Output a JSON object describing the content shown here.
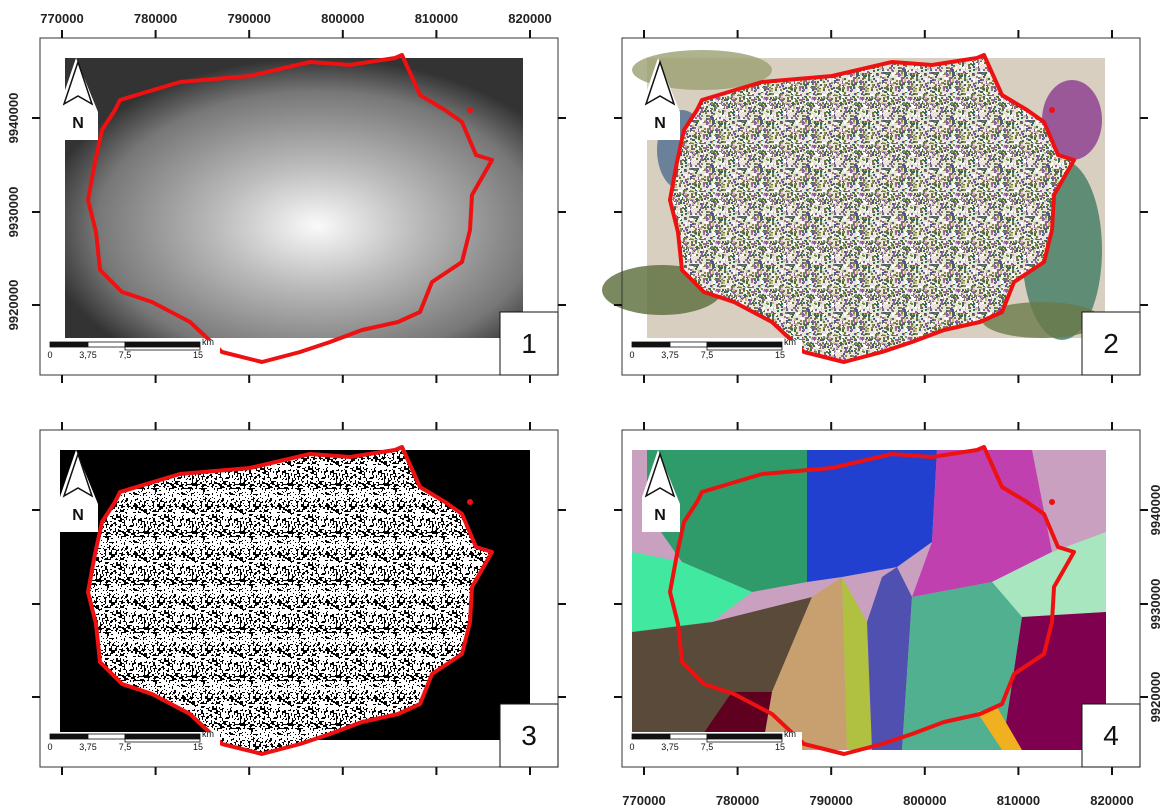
{
  "panels": [
    {
      "label": "1",
      "north": "N",
      "scale_bar": [
        "0",
        "3,75",
        "7,5",
        "15",
        "km"
      ]
    },
    {
      "label": "2",
      "north": "N",
      "scale_bar": [
        "0",
        "3,75",
        "7,5",
        "15",
        "km"
      ]
    },
    {
      "label": "3",
      "north": "N",
      "scale_bar": [
        "0",
        "3,75",
        "7,5",
        "15",
        "km"
      ]
    },
    {
      "label": "4",
      "north": "N",
      "scale_bar": [
        "0",
        "3,75",
        "7,5",
        "15",
        "km"
      ]
    }
  ],
  "x_axis": {
    "top": [
      "770000",
      "780000",
      "790000",
      "800000",
      "810000",
      "820000"
    ],
    "bottom": [
      "770000",
      "780000",
      "790000",
      "800000",
      "810000",
      "820000"
    ]
  },
  "y_axis": {
    "left": [
      "9940000",
      "9930000",
      "9920000"
    ],
    "right": [
      "9940000",
      "9930000",
      "9920000"
    ]
  }
}
